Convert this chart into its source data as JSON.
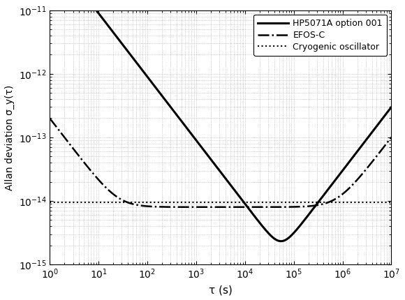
{
  "title": "",
  "xlabel": "τ (s)",
  "ylabel": "Allan deviation σ_y(τ)",
  "xlim": [
    1.0,
    10000000.0
  ],
  "ylim": [
    1e-15,
    1e-11
  ],
  "background_color": "#ffffff",
  "grid_color": "#999999",
  "line_color": "#000000",
  "legend_entries": [
    "HP5071A option 001",
    "EFOS-C",
    "Cryogenic oscillator"
  ],
  "legend_linestyles": [
    "-",
    "-.",
    ":"
  ],
  "legend_linewidths": [
    2.2,
    1.8,
    1.5
  ],
  "hp5071_A": 9e-11,
  "hp5071_C": 2.5e-19,
  "efos_A": 2e-13,
  "efos_floor": 8e-15,
  "efos_C": 5e-21,
  "cryo_level": 9.5e-15
}
